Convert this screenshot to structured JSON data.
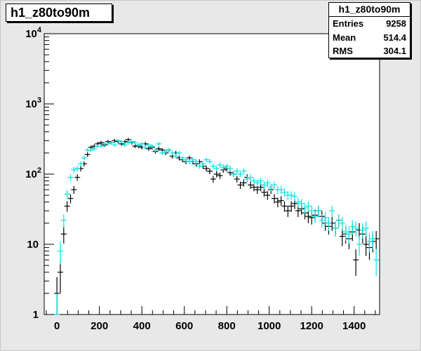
{
  "title": "h1_z80to90m",
  "stats": {
    "name": "h1_z80to90m",
    "rows": [
      {
        "label": "Entries",
        "value": "9258"
      },
      {
        "label": "Mean",
        "value": "514.4"
      },
      {
        "label": "RMS",
        "value": "304.1"
      }
    ]
  },
  "colors": {
    "series_black": "#000000",
    "series_cyan": "#00e5e5",
    "frame_bg": "#e8e8e8",
    "plot_bg": "#ffffff"
  },
  "chart_data": {
    "type": "scatter",
    "title": "h1_z80to90m",
    "xlim": [
      -60,
      1520
    ],
    "ylim": [
      1,
      10000
    ],
    "ylog": true,
    "xticks": [
      "0",
      "200",
      "400",
      "600",
      "800",
      "1000",
      "1200",
      "1400"
    ],
    "yticks": [
      {
        "base": "1",
        "exp": ""
      },
      {
        "base": "10",
        "exp": ""
      },
      {
        "base": "10",
        "exp": "2"
      },
      {
        "base": "10",
        "exp": "3"
      },
      {
        "base": "10",
        "exp": "4"
      }
    ],
    "grid": false,
    "series": [
      {
        "color": "#000000",
        "x": [
          0,
          16,
          32,
          48,
          64,
          80,
          96,
          112,
          128,
          144,
          160,
          176,
          192,
          208,
          224,
          240,
          256,
          272,
          288,
          304,
          320,
          336,
          352,
          368,
          384,
          400,
          416,
          432,
          448,
          464,
          480,
          496,
          512,
          528,
          544,
          560,
          576,
          592,
          608,
          624,
          640,
          656,
          672,
          688,
          704,
          720,
          736,
          752,
          768,
          784,
          800,
          816,
          832,
          848,
          864,
          880,
          896,
          912,
          928,
          944,
          960,
          976,
          992,
          1008,
          1024,
          1040,
          1056,
          1072,
          1088,
          1104,
          1120,
          1136,
          1152,
          1168,
          1184,
          1200,
          1216,
          1232,
          1248,
          1264,
          1280,
          1296,
          1312,
          1328,
          1344,
          1360,
          1376,
          1392,
          1408,
          1424,
          1440,
          1456,
          1472,
          1488,
          1504
        ],
        "y": [
          2,
          4,
          14,
          35,
          45,
          60,
          90,
          120,
          140,
          190,
          240,
          250,
          270,
          280,
          260,
          290,
          280,
          300,
          290,
          270,
          290,
          310,
          280,
          250,
          250,
          240,
          270,
          230,
          240,
          210,
          230,
          220,
          200,
          220,
          180,
          200,
          170,
          160,
          150,
          170,
          150,
          140,
          150,
          130,
          120,
          110,
          85,
          100,
          95,
          115,
          120,
          105,
          100,
          85,
          70,
          75,
          90,
          70,
          65,
          60,
          65,
          55,
          50,
          60,
          45,
          40,
          42,
          35,
          30,
          35,
          38,
          30,
          32,
          28,
          25,
          24,
          26,
          30,
          25,
          20,
          18,
          20,
          17,
          22,
          13,
          14,
          12,
          15,
          6,
          16,
          14,
          10,
          9,
          11,
          12
        ]
      },
      {
        "color": "#00e5e5",
        "x": [
          0,
          16,
          32,
          48,
          64,
          80,
          96,
          112,
          128,
          144,
          160,
          176,
          192,
          208,
          224,
          240,
          256,
          272,
          288,
          304,
          320,
          336,
          352,
          368,
          384,
          400,
          416,
          432,
          448,
          464,
          480,
          496,
          512,
          528,
          544,
          560,
          576,
          592,
          608,
          624,
          640,
          656,
          672,
          688,
          704,
          720,
          736,
          752,
          768,
          784,
          800,
          816,
          832,
          848,
          864,
          880,
          896,
          912,
          928,
          944,
          960,
          976,
          992,
          1008,
          1024,
          1040,
          1056,
          1072,
          1088,
          1104,
          1120,
          1136,
          1152,
          1168,
          1184,
          1200,
          1216,
          1232,
          1248,
          1264,
          1280,
          1296,
          1312,
          1328,
          1344,
          1360,
          1376,
          1392,
          1408,
          1424,
          1440,
          1456,
          1472,
          1488,
          1504
        ],
        "y": [
          1,
          8,
          22,
          52,
          90,
          115,
          120,
          140,
          170,
          220,
          220,
          230,
          250,
          250,
          270,
          270,
          280,
          260,
          300,
          290,
          260,
          280,
          290,
          280,
          260,
          270,
          240,
          260,
          250,
          220,
          270,
          200,
          210,
          220,
          200,
          180,
          200,
          170,
          160,
          150,
          160,
          150,
          130,
          140,
          160,
          150,
          130,
          120,
          135,
          125,
          130,
          120,
          100,
          110,
          100,
          110,
          85,
          90,
          80,
          75,
          80,
          70,
          75,
          65,
          70,
          60,
          60,
          55,
          50,
          50,
          48,
          40,
          38,
          33,
          35,
          30,
          25,
          30,
          22,
          24,
          20,
          30,
          17,
          22,
          20,
          15,
          14,
          18,
          17,
          10,
          16,
          17,
          11,
          12,
          6
        ]
      }
    ]
  }
}
